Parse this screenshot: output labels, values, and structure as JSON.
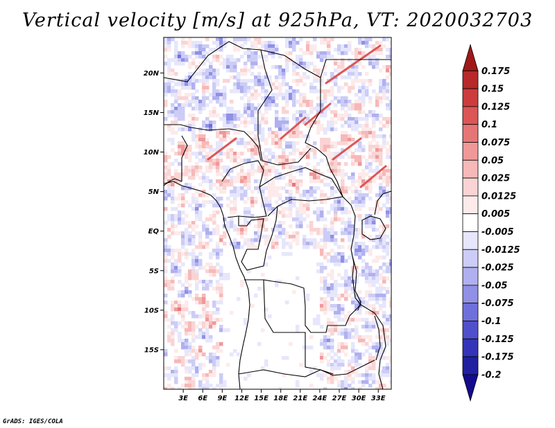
{
  "title": "Vertical velocity [m/s] at 925hPa, VT: 2020032703",
  "credit": "GrADS: IGES/COLA",
  "map": {
    "lat_range": [
      -20,
      24.5
    ],
    "lon_range": [
      0,
      35
    ],
    "lat_ticks": [
      {
        "value": 20,
        "label": "20N"
      },
      {
        "value": 15,
        "label": "15N"
      },
      {
        "value": 10,
        "label": "10N"
      },
      {
        "value": 5,
        "label": "5N"
      },
      {
        "value": 0,
        "label": "EQ"
      },
      {
        "value": -5,
        "label": "5S"
      },
      {
        "value": -10,
        "label": "10S"
      },
      {
        "value": -15,
        "label": "15S"
      }
    ],
    "lon_ticks": [
      {
        "value": 3,
        "label": "3E"
      },
      {
        "value": 6,
        "label": "6E"
      },
      {
        "value": 9,
        "label": "9E"
      },
      {
        "value": 12,
        "label": "12E"
      },
      {
        "value": 15,
        "label": "15E"
      },
      {
        "value": 18,
        "label": "18E"
      },
      {
        "value": 21,
        "label": "21E"
      },
      {
        "value": 24,
        "label": "24E"
      },
      {
        "value": 27,
        "label": "27E"
      },
      {
        "value": 30,
        "label": "30E"
      },
      {
        "value": 33,
        "label": "33E"
      }
    ]
  },
  "colorbar": {
    "labels": [
      "0.175",
      "0.15",
      "0.125",
      "0.1",
      "0.075",
      "0.05",
      "0.025",
      "0.0125",
      "0.005",
      "-0.005",
      "-0.0125",
      "-0.025",
      "-0.05",
      "-0.075",
      "-0.1",
      "-0.125",
      "-0.175",
      "-0.2"
    ],
    "colors": [
      "#a01818",
      "#b82828",
      "#cc3c3c",
      "#dc5656",
      "#e67676",
      "#f09898",
      "#f6b8b8",
      "#fad4d4",
      "#fdeaea",
      "#ffffff",
      "#e6e6fc",
      "#ccccf6",
      "#b0b0f0",
      "#9090e6",
      "#7070dc",
      "#5050cc",
      "#3434b8",
      "#2020a0",
      "#140c8c"
    ]
  }
}
